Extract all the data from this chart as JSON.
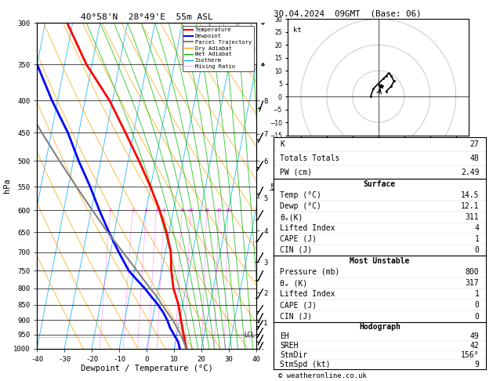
{
  "title_left": "40°58'N  28°49'E  55m ASL",
  "title_right": "30.04.2024  09GMT  (Base: 06)",
  "xlabel": "Dewpoint / Temperature (°C)",
  "ylabel_left": "hPa",
  "pressure_levels": [
    300,
    350,
    400,
    450,
    500,
    550,
    600,
    650,
    700,
    750,
    800,
    850,
    900,
    950,
    1000
  ],
  "temp_data": {
    "pressure": [
      1000,
      975,
      950,
      925,
      900,
      875,
      850,
      825,
      800,
      775,
      750,
      700,
      650,
      600,
      550,
      500,
      450,
      400,
      350,
      300
    ],
    "temp": [
      14.5,
      13.5,
      12.5,
      11.5,
      10.5,
      9.5,
      8.5,
      7.0,
      5.5,
      4.5,
      3.5,
      2.0,
      -1.0,
      -5.0,
      -10.0,
      -16.0,
      -23.0,
      -31.0,
      -42.0,
      -52.0
    ]
  },
  "dewp_data": {
    "pressure": [
      1000,
      975,
      950,
      925,
      900,
      875,
      850,
      825,
      800,
      775,
      750,
      700,
      650,
      600,
      550,
      500,
      450,
      400,
      350,
      300
    ],
    "dewp": [
      12.1,
      11.0,
      9.0,
      7.0,
      5.5,
      3.5,
      1.0,
      -2.0,
      -5.0,
      -8.5,
      -12.0,
      -17.0,
      -22.0,
      -27.0,
      -32.0,
      -38.0,
      -44.0,
      -52.0,
      -60.0,
      -68.0
    ]
  },
  "parcel_data": {
    "pressure": [
      1000,
      975,
      960,
      950,
      925,
      900,
      875,
      850,
      825,
      800,
      775,
      750,
      700,
      650,
      600,
      550,
      500,
      450,
      400,
      350,
      300
    ],
    "temp": [
      14.5,
      13.0,
      12.1,
      11.5,
      9.5,
      7.5,
      5.0,
      2.5,
      0.0,
      -3.0,
      -6.0,
      -9.0,
      -15.5,
      -22.5,
      -29.5,
      -37.0,
      -45.0,
      -53.5,
      -62.5,
      -73.0,
      -84.0
    ]
  },
  "temp_color": "#FF0000",
  "dewp_color": "#0000FF",
  "parcel_color": "#808080",
  "dry_adiabat_color": "#FFA500",
  "wet_adiabat_color": "#00BB00",
  "isotherm_color": "#00AAFF",
  "mixing_ratio_color": "#FF00FF",
  "background_color": "#FFFFFF",
  "xlim": [
    -40,
    40
  ],
  "p_min": 300,
  "p_max": 1000,
  "skew_factor": 23,
  "mixing_ratios": [
    1,
    2,
    3,
    4,
    5,
    8,
    10,
    15,
    20,
    25
  ],
  "km_ticks": [
    1,
    2,
    3,
    4,
    5,
    6,
    7,
    8
  ],
  "km_pressures": [
    907,
    813,
    726,
    647,
    573,
    500,
    452,
    400
  ],
  "lcl_pressure": 958,
  "wind_pressures": [
    1000,
    975,
    950,
    925,
    900,
    875,
    850,
    800,
    750,
    700,
    650,
    600,
    550,
    500,
    450,
    400,
    350,
    300
  ],
  "wind_u": [
    2,
    2,
    2,
    3,
    3,
    3,
    4,
    4,
    4,
    5,
    5,
    4,
    3,
    3,
    2,
    1,
    0,
    -1
  ],
  "wind_v": [
    3,
    4,
    4,
    5,
    5,
    6,
    6,
    7,
    8,
    9,
    8,
    7,
    6,
    5,
    4,
    3,
    2,
    1
  ],
  "params": {
    "K": 27,
    "Totals_Totals": 48,
    "PW_cm": "2.49",
    "Surface_Temp": "14.5",
    "Surface_Dewp": "12.1",
    "Surface_ThetaE": 311,
    "Surface_LI": 4,
    "Surface_CAPE": 1,
    "Surface_CIN": 0,
    "MU_Pressure": 800,
    "MU_ThetaE": 317,
    "MU_LI": 1,
    "MU_CAPE": 0,
    "MU_CIN": 0,
    "EH": 49,
    "SREH": 42,
    "StmDir": "156°",
    "StmSpd_kt": 9
  }
}
